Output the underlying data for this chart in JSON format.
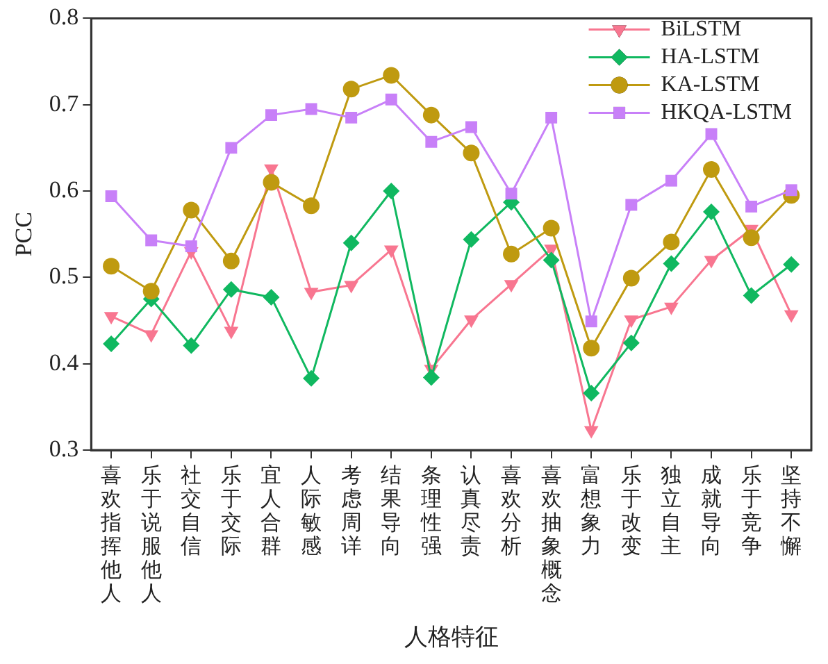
{
  "chart_data": {
    "type": "line",
    "xlabel": "人格特征",
    "ylabel": "PCC",
    "categories": [
      "喜欢指挥他人",
      "乐于说服他人",
      "社交自信",
      "乐于交际",
      "宜人合群",
      "人际敏感",
      "考虑周详",
      "结果导向",
      "条理性强",
      "认真尽责",
      "喜欢分析",
      "喜欢抽象概念",
      "富想象力",
      "乐于改变",
      "独立自主",
      "成就导向",
      "乐于竞争",
      "坚持不懈"
    ],
    "series": [
      {
        "name": "BiLSTM",
        "color": "#f87690",
        "marker": "triangle",
        "values": [
          0.455,
          0.434,
          0.53,
          0.438,
          0.626,
          0.483,
          0.491,
          0.532,
          0.394,
          0.451,
          0.492,
          0.533,
          0.323,
          0.451,
          0.466,
          0.52,
          0.556,
          0.457
        ]
      },
      {
        "name": "HA-LSTM",
        "color": "#10b860",
        "marker": "diamond",
        "values": [
          0.423,
          0.475,
          0.421,
          0.486,
          0.477,
          0.383,
          0.54,
          0.6,
          0.384,
          0.544,
          0.587,
          0.52,
          0.366,
          0.424,
          0.516,
          0.576,
          0.479,
          0.515
        ]
      },
      {
        "name": "KA-LSTM",
        "color": "#bf9a10",
        "marker": "circle",
        "values": [
          0.513,
          0.484,
          0.578,
          0.519,
          0.61,
          0.583,
          0.718,
          0.734,
          0.688,
          0.644,
          0.527,
          0.557,
          0.418,
          0.499,
          0.541,
          0.625,
          0.546,
          0.595
        ]
      },
      {
        "name": "HKQA-LSTM",
        "color": "#c880f8",
        "marker": "square",
        "values": [
          0.594,
          0.543,
          0.536,
          0.65,
          0.688,
          0.695,
          0.685,
          0.706,
          0.657,
          0.674,
          0.597,
          0.685,
          0.449,
          0.584,
          0.612,
          0.666,
          0.582,
          0.601
        ]
      }
    ],
    "ylim": [
      0.3,
      0.8
    ],
    "yticks": [
      0.3,
      0.4,
      0.5,
      0.6,
      0.7,
      0.8
    ],
    "grid": false,
    "legend": "top right",
    "line_style": "solid"
  }
}
